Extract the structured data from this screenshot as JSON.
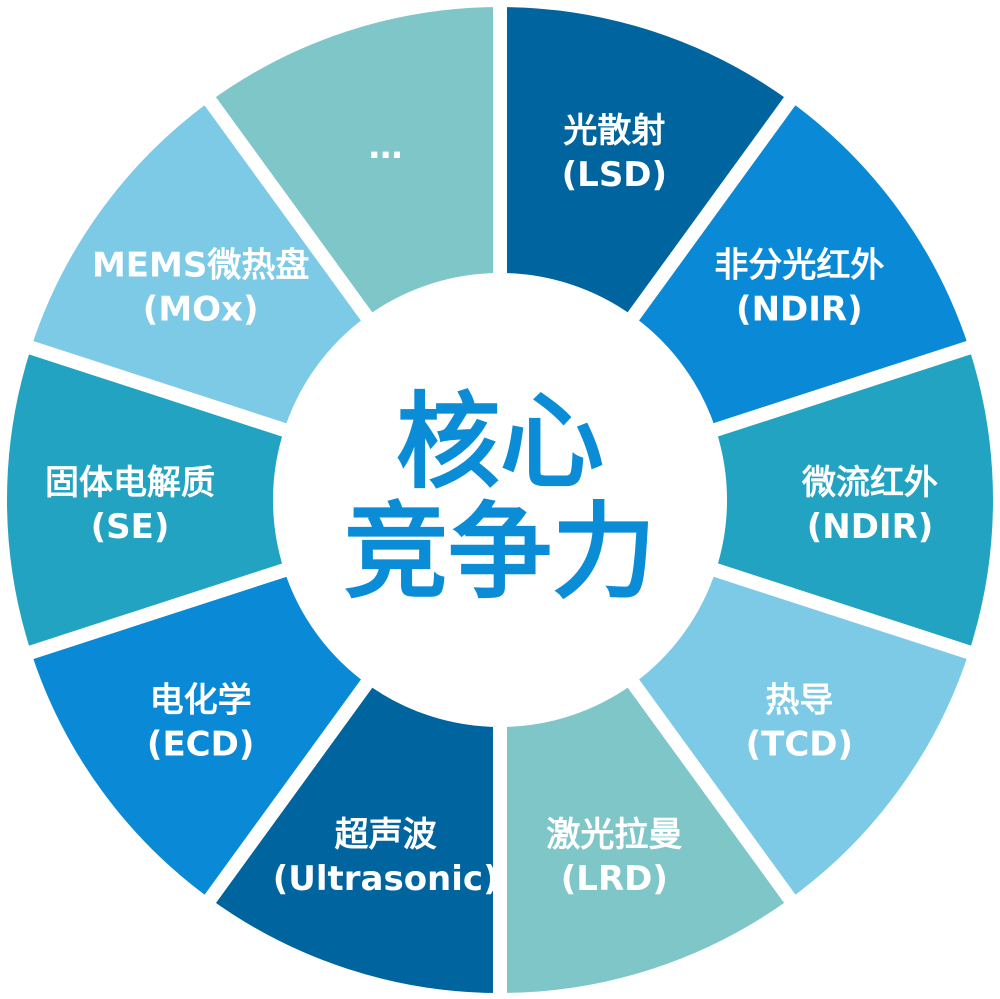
{
  "center": {
    "line1": "核心",
    "line2": "竞争力",
    "color": "#0a8dd6"
  },
  "segments": [
    {
      "label": "光散射",
      "sublabel": "(LSD)",
      "color": "#00649f"
    },
    {
      "label": "非分光红外",
      "sublabel": "(NDIR)",
      "color": "#0a8ad6"
    },
    {
      "label": "微流红外",
      "sublabel": "(NDIR)",
      "color": "#22a3c1"
    },
    {
      "label": "热导",
      "sublabel": "(TCD)",
      "color": "#7ccae6"
    },
    {
      "label": "激光拉曼",
      "sublabel": "(LRD)",
      "color": "#7fc6c9"
    },
    {
      "label": "超声波",
      "sublabel": "(Ultrasonic)",
      "color": "#00649f"
    },
    {
      "label": "电化学",
      "sublabel": "(ECD)",
      "color": "#0a8ad6"
    },
    {
      "label": "固体电解质",
      "sublabel": "(SE)",
      "color": "#22a3c1"
    },
    {
      "label": "MEMS微热盘",
      "sublabel": "(MOx)",
      "color": "#7ccae6"
    },
    {
      "label": "…",
      "sublabel": "",
      "color": "#7fc6c9"
    }
  ]
}
